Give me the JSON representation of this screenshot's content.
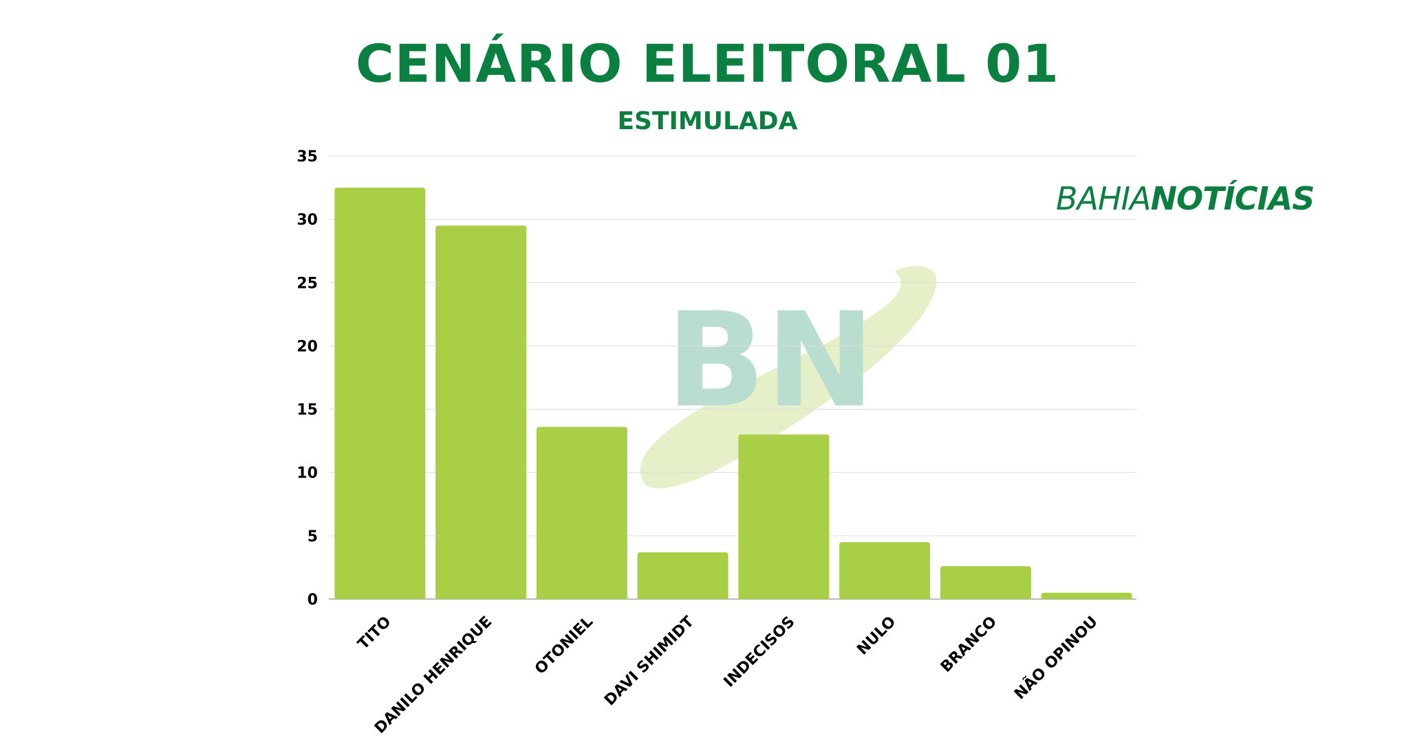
{
  "brand": {
    "part1": "BAHIA",
    "part2": "NOTÍCIAS",
    "watermark_letters": "BN",
    "color": "#0b7f3f"
  },
  "chart_data": {
    "type": "bar",
    "title": "CENÁRIO ELEITORAL 01",
    "subtitle": "ESTIMULADA",
    "categories": [
      "TITO",
      "DANILO HENRIQUE",
      "OTONIEL",
      "DAVI SHIMIDT",
      "INDECISOS",
      "NULO",
      "BRANCO",
      "NÃO OPINOU"
    ],
    "values": [
      32.5,
      29.5,
      13.6,
      3.7,
      13.0,
      4.5,
      2.6,
      0.5
    ],
    "ylim": [
      0,
      35
    ],
    "yticks": [
      0,
      5,
      10,
      15,
      20,
      25,
      30,
      35
    ],
    "grid": true,
    "bar_color": "#a8cf45",
    "title_color": "#0b7f3f"
  }
}
